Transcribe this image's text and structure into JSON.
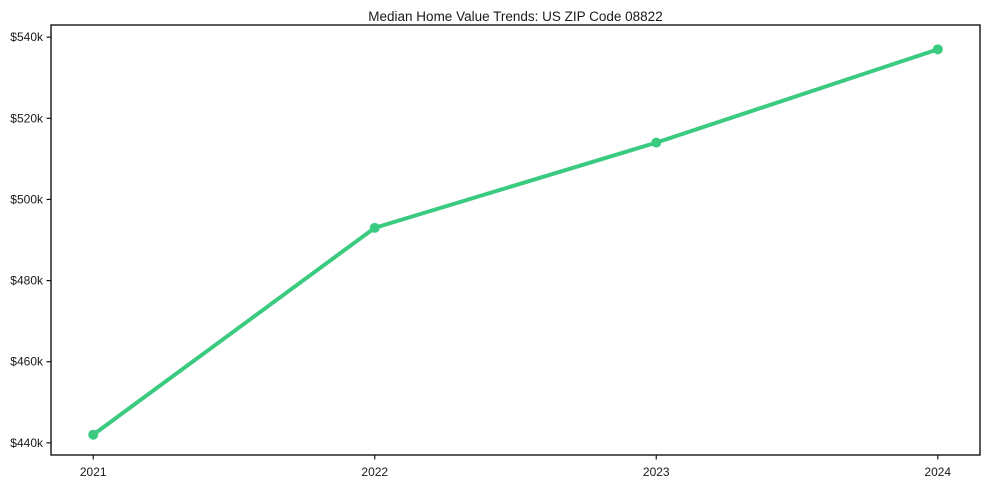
{
  "title": "Median Home Value Trends: US ZIP Code 08822",
  "colors": {
    "line": "#3bcb80",
    "axis": "#141414",
    "text": "#1a1a1a",
    "background": "#ffffff"
  },
  "chart_data": {
    "type": "line",
    "title": "Median Home Value Trends: US ZIP Code 08822",
    "series_name": "Median Home Value",
    "x": [
      2021,
      2022,
      2023,
      2024
    ],
    "values": [
      442000,
      493000,
      514000,
      537000
    ],
    "x_tick_labels": [
      "2021",
      "2022",
      "2023",
      "2024"
    ],
    "y_ticks": [
      440000,
      460000,
      480000,
      500000,
      520000,
      540000
    ],
    "y_tick_labels": [
      "$440k",
      "$460k",
      "$480k",
      "$500k",
      "$520k",
      "$540k"
    ],
    "xlim": [
      2020.85,
      2024.15
    ],
    "ylim": [
      437000,
      543000
    ],
    "xlabel": "",
    "ylabel": "",
    "grid": false,
    "legend": "none",
    "marker": "circle",
    "marker_radius": 5,
    "line_width": 4
  }
}
